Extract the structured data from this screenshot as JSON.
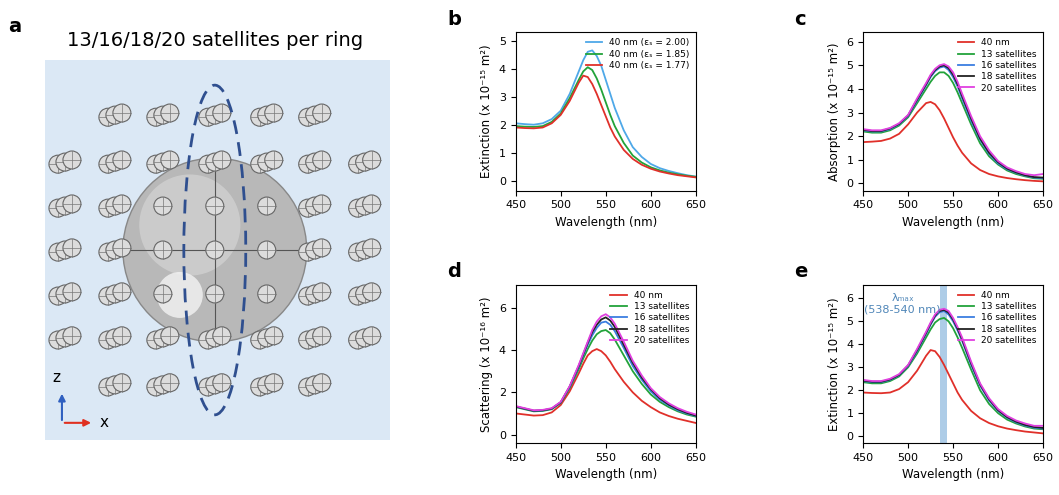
{
  "diagram": {
    "panel": "a",
    "title": "13/16/18/20 satellites per ring",
    "axis_labels": [
      "z",
      "x"
    ]
  },
  "chart_data": [
    {
      "panel": "b",
      "type": "line",
      "x_label": "Wavelength (nm)",
      "y_label": "Extinction (x 10⁻¹⁵ m²)",
      "x": [
        450,
        460,
        470,
        480,
        490,
        500,
        510,
        520,
        525,
        530,
        535,
        540,
        545,
        550,
        555,
        560,
        570,
        580,
        590,
        600,
        610,
        620,
        630,
        640,
        650
      ],
      "xlim": [
        450,
        650
      ],
      "xticks": [
        450,
        500,
        550,
        600,
        650
      ],
      "ylim": [
        -0.35,
        5.3
      ],
      "yticks": [
        0,
        1,
        2,
        3,
        4,
        5
      ],
      "legend": "upper right",
      "series": [
        {
          "name": "40 nm (εₛ = 2.00)",
          "color": "#4ea8e8",
          "values": [
            2.05,
            2.02,
            2.0,
            2.05,
            2.2,
            2.5,
            3.1,
            3.9,
            4.3,
            4.6,
            4.65,
            4.45,
            4.1,
            3.6,
            3.1,
            2.6,
            1.8,
            1.2,
            0.85,
            0.6,
            0.45,
            0.35,
            0.27,
            0.2,
            0.15
          ]
        },
        {
          "name": "40 nm (εₛ = 1.85)",
          "color": "#22a33a",
          "values": [
            1.95,
            1.93,
            1.92,
            1.95,
            2.1,
            2.4,
            2.95,
            3.6,
            3.9,
            4.05,
            3.95,
            3.65,
            3.25,
            2.8,
            2.35,
            1.95,
            1.35,
            0.9,
            0.65,
            0.48,
            0.37,
            0.29,
            0.23,
            0.18,
            0.14
          ]
        },
        {
          "name": "40 nm (εₛ = 1.77)",
          "color": "#e0302a",
          "values": [
            1.9,
            1.88,
            1.87,
            1.9,
            2.05,
            2.35,
            2.85,
            3.5,
            3.75,
            3.7,
            3.45,
            3.1,
            2.7,
            2.3,
            1.9,
            1.58,
            1.1,
            0.78,
            0.57,
            0.43,
            0.33,
            0.26,
            0.2,
            0.16,
            0.12
          ]
        }
      ]
    },
    {
      "panel": "c",
      "type": "line",
      "x_label": "Wavelength (nm)",
      "y_label": "Absorption (x 10⁻¹⁵ m²)",
      "x": [
        450,
        460,
        470,
        480,
        490,
        500,
        510,
        520,
        525,
        530,
        535,
        540,
        545,
        550,
        555,
        560,
        570,
        580,
        590,
        600,
        610,
        620,
        630,
        640,
        650
      ],
      "xlim": [
        450,
        650
      ],
      "xticks": [
        450,
        500,
        550,
        600,
        650
      ],
      "ylim": [
        -0.3,
        6.4
      ],
      "yticks": [
        0,
        1,
        2,
        3,
        4,
        5,
        6
      ],
      "legend": "upper right",
      "series": [
        {
          "name": "40 nm",
          "color": "#e0302a",
          "values": [
            1.75,
            1.77,
            1.8,
            1.9,
            2.1,
            2.5,
            3.0,
            3.4,
            3.45,
            3.35,
            3.1,
            2.75,
            2.35,
            1.95,
            1.6,
            1.3,
            0.85,
            0.57,
            0.4,
            0.3,
            0.23,
            0.18,
            0.14,
            0.11,
            0.09
          ]
        },
        {
          "name": "13 satellites",
          "color": "#22a33a",
          "values": [
            2.2,
            2.15,
            2.15,
            2.25,
            2.45,
            2.8,
            3.4,
            4.0,
            4.3,
            4.55,
            4.7,
            4.7,
            4.55,
            4.25,
            3.85,
            3.4,
            2.5,
            1.7,
            1.15,
            0.8,
            0.55,
            0.4,
            0.3,
            0.22,
            0.2
          ]
        },
        {
          "name": "16 satellites",
          "color": "#3b7ee0",
          "values": [
            2.25,
            2.2,
            2.2,
            2.3,
            2.5,
            2.85,
            3.5,
            4.15,
            4.5,
            4.75,
            4.9,
            4.95,
            4.8,
            4.5,
            4.1,
            3.6,
            2.65,
            1.85,
            1.25,
            0.85,
            0.6,
            0.45,
            0.33,
            0.25,
            0.22
          ]
        },
        {
          "name": "18 satellites",
          "color": "#222222",
          "values": [
            2.27,
            2.22,
            2.22,
            2.33,
            2.52,
            2.88,
            3.55,
            4.2,
            4.55,
            4.8,
            4.95,
            5.0,
            4.88,
            4.6,
            4.2,
            3.7,
            2.75,
            1.9,
            1.3,
            0.9,
            0.63,
            0.47,
            0.35,
            0.27,
            0.25
          ]
        },
        {
          "name": "20 satellites",
          "color": "#e040e0",
          "values": [
            2.3,
            2.25,
            2.25,
            2.35,
            2.55,
            2.9,
            3.6,
            4.25,
            4.6,
            4.85,
            5.0,
            5.05,
            4.95,
            4.7,
            4.3,
            3.8,
            2.85,
            2.0,
            1.4,
            0.95,
            0.68,
            0.52,
            0.4,
            0.35,
            0.4
          ]
        }
      ]
    },
    {
      "panel": "d",
      "type": "line",
      "x_label": "Wavelength (nm)",
      "y_label": "Scattering (x 10⁻¹⁶ m²)",
      "x": [
        450,
        460,
        470,
        480,
        490,
        500,
        510,
        520,
        525,
        530,
        535,
        540,
        545,
        550,
        555,
        560,
        570,
        580,
        590,
        600,
        610,
        620,
        630,
        640,
        650
      ],
      "xlim": [
        450,
        650
      ],
      "xticks": [
        450,
        500,
        550,
        600,
        650
      ],
      "ylim": [
        -0.4,
        7.1
      ],
      "yticks": [
        0,
        2,
        4,
        6
      ],
      "legend": "upper right",
      "series": [
        {
          "name": "40 nm",
          "color": "#e0302a",
          "values": [
            1.0,
            0.95,
            0.9,
            0.92,
            1.05,
            1.4,
            2.05,
            2.9,
            3.35,
            3.75,
            3.95,
            4.05,
            3.95,
            3.75,
            3.45,
            3.1,
            2.5,
            2.0,
            1.6,
            1.3,
            1.05,
            0.88,
            0.75,
            0.65,
            0.55
          ]
        },
        {
          "name": "13 satellites",
          "color": "#22a33a",
          "values": [
            1.3,
            1.2,
            1.1,
            1.12,
            1.2,
            1.5,
            2.2,
            3.1,
            3.6,
            4.05,
            4.45,
            4.75,
            4.9,
            4.95,
            4.8,
            4.5,
            3.75,
            3.0,
            2.4,
            1.9,
            1.55,
            1.3,
            1.1,
            0.95,
            0.85
          ]
        },
        {
          "name": "16 satellites",
          "color": "#3b7ee0",
          "values": [
            1.32,
            1.22,
            1.12,
            1.14,
            1.22,
            1.52,
            2.25,
            3.2,
            3.75,
            4.25,
            4.7,
            5.05,
            5.3,
            5.35,
            5.2,
            4.9,
            4.1,
            3.25,
            2.6,
            2.05,
            1.65,
            1.38,
            1.15,
            1.0,
            0.88
          ]
        },
        {
          "name": "18 satellites",
          "color": "#222222",
          "values": [
            1.33,
            1.23,
            1.13,
            1.15,
            1.23,
            1.53,
            2.28,
            3.25,
            3.8,
            4.35,
            4.85,
            5.2,
            5.45,
            5.55,
            5.4,
            5.1,
            4.25,
            3.4,
            2.7,
            2.15,
            1.72,
            1.42,
            1.2,
            1.03,
            0.9
          ]
        },
        {
          "name": "20 satellites",
          "color": "#e040e0",
          "values": [
            1.35,
            1.25,
            1.15,
            1.17,
            1.25,
            1.55,
            2.3,
            3.3,
            3.85,
            4.4,
            4.95,
            5.35,
            5.6,
            5.7,
            5.55,
            5.25,
            4.4,
            3.5,
            2.8,
            2.2,
            1.78,
            1.48,
            1.25,
            1.08,
            0.95
          ]
        }
      ]
    },
    {
      "panel": "e",
      "type": "line",
      "x_label": "Wavelength (nm)",
      "y_label": "Extinction (x 10⁻¹⁵ m²)",
      "x": [
        450,
        460,
        470,
        480,
        490,
        500,
        510,
        520,
        525,
        530,
        535,
        540,
        545,
        550,
        555,
        560,
        570,
        580,
        590,
        600,
        610,
        620,
        630,
        640,
        650
      ],
      "xlim": [
        450,
        650
      ],
      "xticks": [
        450,
        500,
        550,
        600,
        650
      ],
      "ylim": [
        -0.3,
        6.6
      ],
      "yticks": [
        0,
        1,
        2,
        3,
        4,
        5,
        6
      ],
      "legend": "upper right",
      "annotation": {
        "text": "λₘₐₓ\n(538-540 nm)",
        "band": [
          535,
          543
        ],
        "color": "#4f86b8"
      },
      "series": [
        {
          "name": "40 nm",
          "color": "#e0302a",
          "values": [
            1.9,
            1.88,
            1.87,
            1.9,
            2.05,
            2.35,
            2.85,
            3.5,
            3.75,
            3.7,
            3.45,
            3.1,
            2.7,
            2.3,
            1.9,
            1.58,
            1.1,
            0.78,
            0.57,
            0.43,
            0.33,
            0.26,
            0.2,
            0.16,
            0.12
          ]
        },
        {
          "name": "13 satellites",
          "color": "#22a33a",
          "values": [
            2.35,
            2.3,
            2.3,
            2.4,
            2.6,
            3.0,
            3.6,
            4.3,
            4.65,
            4.95,
            5.1,
            5.15,
            5.0,
            4.7,
            4.3,
            3.85,
            2.9,
            2.0,
            1.4,
            1.0,
            0.72,
            0.55,
            0.42,
            0.33,
            0.3
          ]
        },
        {
          "name": "16 satellites",
          "color": "#3b7ee0",
          "values": [
            2.4,
            2.35,
            2.35,
            2.45,
            2.65,
            3.05,
            3.7,
            4.45,
            4.85,
            5.2,
            5.4,
            5.45,
            5.3,
            5.0,
            4.6,
            4.15,
            3.1,
            2.2,
            1.55,
            1.1,
            0.8,
            0.6,
            0.46,
            0.37,
            0.33
          ]
        },
        {
          "name": "18 satellites",
          "color": "#222222",
          "values": [
            2.42,
            2.37,
            2.37,
            2.47,
            2.67,
            3.08,
            3.75,
            4.5,
            4.9,
            5.25,
            5.45,
            5.5,
            5.38,
            5.08,
            4.68,
            4.22,
            3.18,
            2.25,
            1.6,
            1.13,
            0.83,
            0.63,
            0.49,
            0.4,
            0.36
          ]
        },
        {
          "name": "20 satellites",
          "color": "#e040e0",
          "values": [
            2.45,
            2.4,
            2.4,
            2.5,
            2.7,
            3.1,
            3.8,
            4.55,
            4.95,
            5.3,
            5.5,
            5.55,
            5.45,
            5.15,
            4.75,
            4.3,
            3.25,
            2.3,
            1.65,
            1.18,
            0.88,
            0.68,
            0.55,
            0.45,
            0.45
          ]
        }
      ]
    }
  ]
}
